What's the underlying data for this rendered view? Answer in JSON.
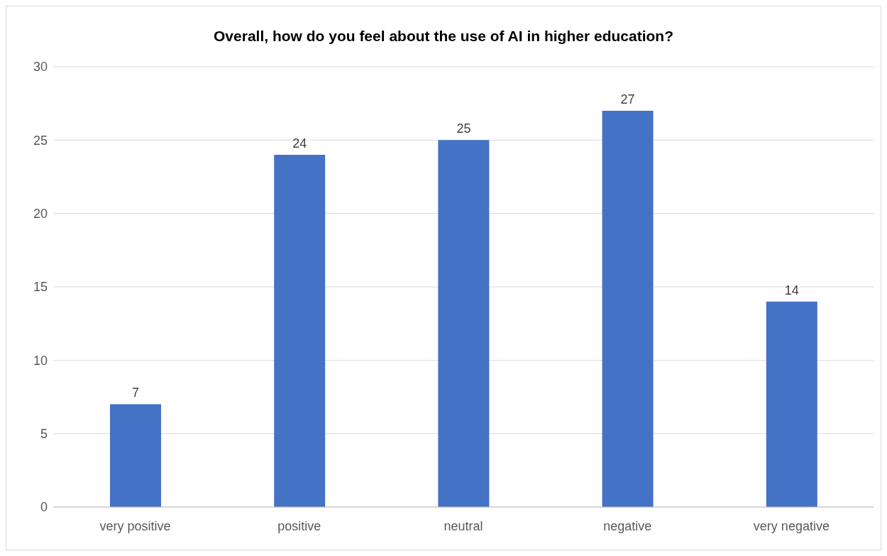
{
  "chart_data": {
    "type": "bar",
    "title": "Overall, how do you feel about the use of AI in higher education?",
    "categories": [
      "very positive",
      "positive",
      "neutral",
      "negative",
      "very negative"
    ],
    "values": [
      7,
      24,
      25,
      27,
      14
    ],
    "color": "#4472c4",
    "ylim": [
      0,
      30
    ],
    "yticks": [
      0,
      5,
      10,
      15,
      20,
      25,
      30
    ],
    "grid": "y",
    "data_labels": true
  }
}
